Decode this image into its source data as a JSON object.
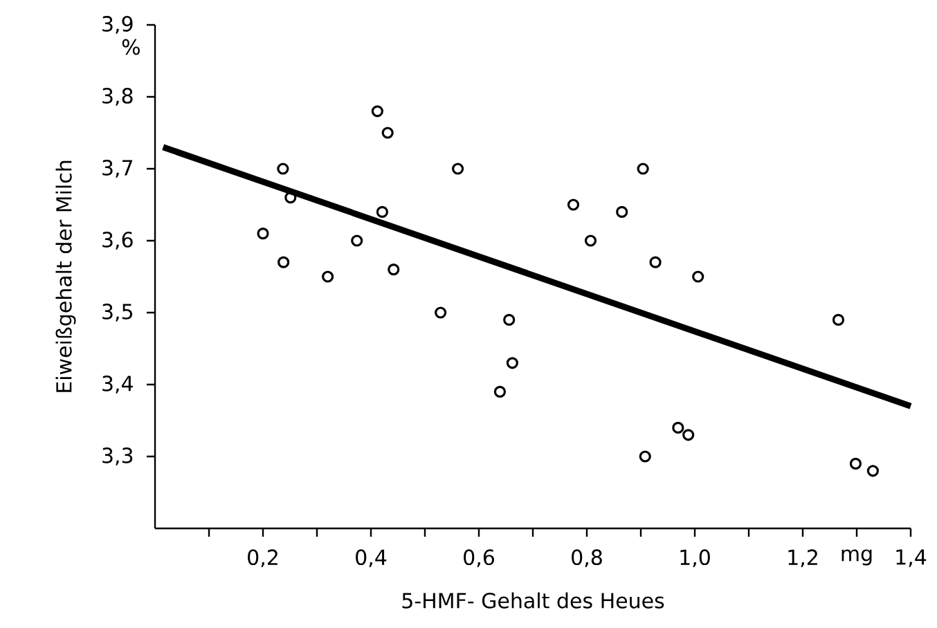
{
  "chart_data": {
    "type": "scatter",
    "xlabel": "5-HMF- Gehalt des Heues",
    "ylabel": "Eiweißgehalt der Milch",
    "annotations": [
      "%"
    ],
    "grid": false,
    "xlim": [
      0,
      1.4
    ],
    "ylim": [
      3.2,
      3.9
    ],
    "xticks": [
      {
        "value": 0.1,
        "label": null
      },
      {
        "value": 0.2,
        "label": "0,2"
      },
      {
        "value": 0.3,
        "label": null
      },
      {
        "value": 0.4,
        "label": "0,4"
      },
      {
        "value": 0.5,
        "label": null
      },
      {
        "value": 0.6,
        "label": "0,6"
      },
      {
        "value": 0.7,
        "label": null
      },
      {
        "value": 0.8,
        "label": "0,8"
      },
      {
        "value": 0.9,
        "label": null
      },
      {
        "value": 1.0,
        "label": "1,0"
      },
      {
        "value": 1.1,
        "label": null
      },
      {
        "value": 1.2,
        "label": "1,2"
      },
      {
        "value": 1.3,
        "label": "mg"
      },
      {
        "value": 1.4,
        "label": "1,4"
      }
    ],
    "yticks": [
      {
        "value": 3.3,
        "label": "3,3"
      },
      {
        "value": 3.4,
        "label": "3,4"
      },
      {
        "value": 3.5,
        "label": "3,5"
      },
      {
        "value": 3.6,
        "label": "3,6"
      },
      {
        "value": 3.7,
        "label": "3,7"
      },
      {
        "value": 3.8,
        "label": "3,8"
      },
      {
        "value": 3.9,
        "label": "3,9"
      }
    ],
    "series": [
      {
        "marker": "circle",
        "color": "#000000",
        "x": [
          0.2,
          0.237,
          0.251,
          0.238,
          0.32,
          0.374,
          0.412,
          0.431,
          0.421,
          0.442,
          0.529,
          0.561,
          0.656,
          0.662,
          0.639,
          0.775,
          0.807,
          0.865,
          0.904,
          0.927,
          1.006,
          0.908,
          0.969,
          0.988,
          1.266,
          1.298,
          1.33
        ],
        "values": [
          3.61,
          3.7,
          3.66,
          3.57,
          3.55,
          3.6,
          3.78,
          3.75,
          3.64,
          3.56,
          3.5,
          3.7,
          3.49,
          3.43,
          3.39,
          3.65,
          3.6,
          3.64,
          3.7,
          3.57,
          3.55,
          3.3,
          3.34,
          3.33,
          3.49,
          3.29,
          3.28
        ]
      },
      {
        "type": "line",
        "marker": "none",
        "color": "#000000",
        "x": [
          0.015,
          1.4
        ],
        "values": [
          3.73,
          3.37
        ]
      }
    ]
  }
}
